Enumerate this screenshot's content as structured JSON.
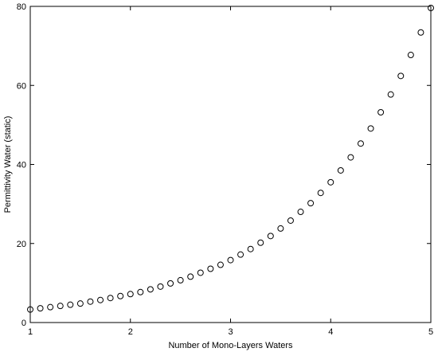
{
  "chart_data": {
    "type": "scatter",
    "title": "",
    "xlabel": "Number of Mono-Layers Waters",
    "ylabel": "Permittivity Water (static)",
    "xlim": [
      1,
      5
    ],
    "ylim": [
      0,
      80
    ],
    "xticks": [
      1,
      2,
      3,
      4,
      5
    ],
    "xtick_labels": [
      "1",
      "2",
      "3",
      "4",
      "5"
    ],
    "yticks": [
      0,
      20,
      40,
      60,
      80
    ],
    "ytick_labels": [
      "0",
      "20",
      "40",
      "60",
      "80"
    ],
    "grid": false,
    "marker": "open-circle",
    "marker_color": "#000000",
    "series": [
      {
        "x": [
          1.0,
          1.1,
          1.2,
          1.3,
          1.4,
          1.5,
          1.6,
          1.7,
          1.8,
          1.9,
          2.0,
          2.1,
          2.2,
          2.3,
          2.4,
          2.5,
          2.6,
          2.7,
          2.8,
          2.9,
          3.0,
          3.1,
          3.2,
          3.3,
          3.4,
          3.5,
          3.6,
          3.7,
          3.8,
          3.9,
          4.0,
          4.1,
          4.2,
          4.3,
          4.4,
          4.5,
          4.6,
          4.7,
          4.8,
          4.9,
          5.0
        ],
        "y": [
          3.3,
          3.6,
          3.9,
          4.2,
          4.5,
          4.8,
          5.3,
          5.7,
          6.2,
          6.7,
          7.2,
          7.7,
          8.4,
          9.1,
          9.9,
          10.7,
          11.6,
          12.6,
          13.6,
          14.6,
          15.8,
          17.2,
          18.6,
          20.2,
          21.9,
          23.8,
          25.8,
          28.0,
          30.2,
          32.8,
          35.5,
          38.5,
          41.8,
          45.3,
          49.1,
          53.2,
          57.7,
          62.4,
          67.7,
          73.4,
          79.6
        ]
      }
    ]
  }
}
